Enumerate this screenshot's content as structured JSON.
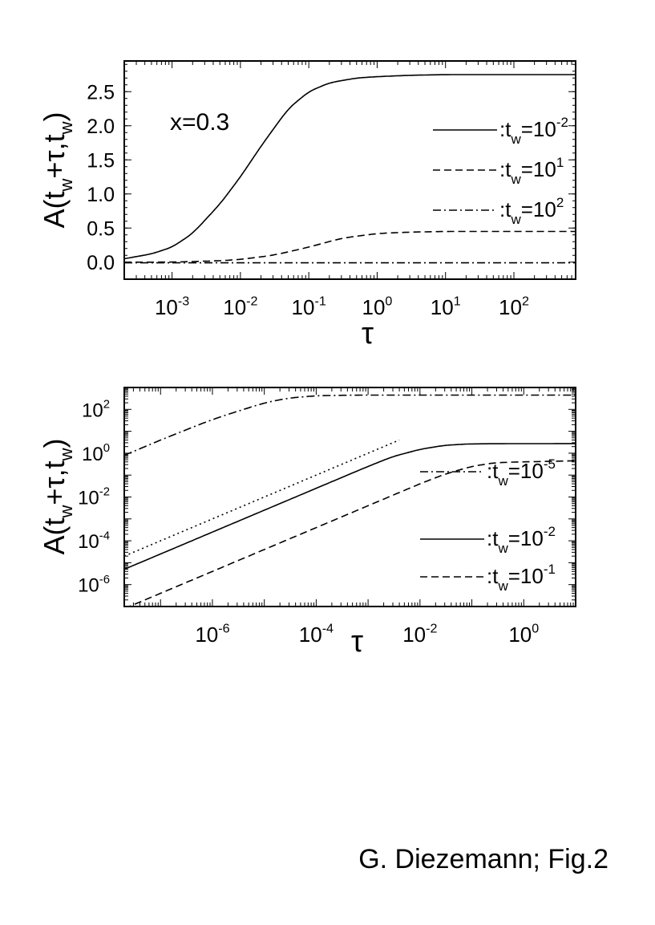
{
  "chart_data": [
    {
      "type": "line",
      "panel": "top",
      "x_scale": "log",
      "y_scale": "linear",
      "xlim": [
        0.0002,
        800
      ],
      "ylim": [
        -0.25,
        2.95
      ],
      "xlabel": "τ",
      "ylabel": "A(t_w+τ,t_w)",
      "yticks": [
        0.0,
        0.5,
        1.0,
        1.5,
        2.0,
        2.5
      ],
      "ytick_labels": [
        "0.0",
        "0.5",
        "1.0",
        "1.5",
        "2.0",
        "2.5"
      ],
      "xtick_exponents": [
        "-3",
        "-2",
        "-1",
        "0",
        "1",
        "2"
      ],
      "annotation": "x=0.3",
      "legend_position": "right",
      "series": [
        {
          "name": ":t_w=10^-2",
          "label_exp": "-2",
          "style": "solid",
          "x": [
            0.0002,
            0.0005,
            0.001,
            0.002,
            0.005,
            0.01,
            0.02,
            0.05,
            0.1,
            0.2,
            0.5,
            1,
            3,
            10,
            100,
            800
          ],
          "y": [
            0.05,
            0.12,
            0.22,
            0.42,
            0.85,
            1.25,
            1.7,
            2.25,
            2.5,
            2.63,
            2.7,
            2.72,
            2.74,
            2.75,
            2.75,
            2.75
          ]
        },
        {
          "name": ":t_w=10^1",
          "label_exp": "1",
          "style": "dashed",
          "x": [
            0.0002,
            0.001,
            0.005,
            0.01,
            0.03,
            0.1,
            0.3,
            1,
            3,
            10,
            100,
            800
          ],
          "y": [
            0.0,
            0.0,
            0.02,
            0.04,
            0.1,
            0.22,
            0.35,
            0.42,
            0.44,
            0.45,
            0.45,
            0.45
          ]
        },
        {
          "name": ":t_w=10^2",
          "label_exp": "2",
          "style": "dashdot",
          "x": [
            0.0002,
            0.01,
            1,
            800
          ],
          "y": [
            -0.01,
            -0.01,
            -0.01,
            -0.01
          ]
        }
      ]
    },
    {
      "type": "line",
      "panel": "bottom",
      "x_scale": "log",
      "y_scale": "log",
      "xlim": [
        2e-08,
        10
      ],
      "ylim": [
        1e-07,
        1000
      ],
      "xlabel": "τ",
      "ylabel": "A(t_w+τ,t_w)",
      "xtick_exponents": [
        "-6",
        "-4",
        "-2",
        "0"
      ],
      "ytick_exponents": [
        "2",
        "0",
        "-2",
        "-4",
        "-6"
      ],
      "legend_position": "right",
      "series": [
        {
          "name": ":t_w=10^-5",
          "label_exp": "-5",
          "style": "dashdot",
          "x": [
            2e-08,
            1e-07,
            1e-06,
            1e-05,
            3e-05,
            0.0001,
            0.0003,
            0.001,
            10
          ],
          "y": [
            0.8,
            4,
            35,
            200,
            330,
            420,
            440,
            450,
            450
          ]
        },
        {
          "name": ":t_w=10^-2",
          "label_exp": "-2",
          "style": "solid",
          "x": [
            2e-08,
            1e-07,
            1e-06,
            1e-05,
            0.0001,
            0.001,
            0.003,
            0.01,
            0.03,
            0.1,
            10
          ],
          "y": [
            5e-06,
            2.5e-05,
            0.00025,
            0.0025,
            0.025,
            0.25,
            0.7,
            1.5,
            2.3,
            2.7,
            2.75
          ]
        },
        {
          "name": ":t_w=10^-1",
          "label_exp": "-1",
          "style": "dashed",
          "x": [
            2e-08,
            1e-07,
            1e-06,
            1e-05,
            0.0001,
            0.001,
            0.01,
            0.03,
            0.1,
            0.3,
            10
          ],
          "y": [
            8e-08,
            4e-07,
            4e-06,
            4e-05,
            0.0004,
            0.004,
            0.04,
            0.11,
            0.25,
            0.38,
            0.45
          ]
        },
        {
          "name": "",
          "style": "dotted",
          "x": [
            2e-08,
            0.004
          ],
          "y": [
            2e-05,
            4
          ]
        }
      ]
    }
  ],
  "caption": "G. Diezemann; Fig.2"
}
